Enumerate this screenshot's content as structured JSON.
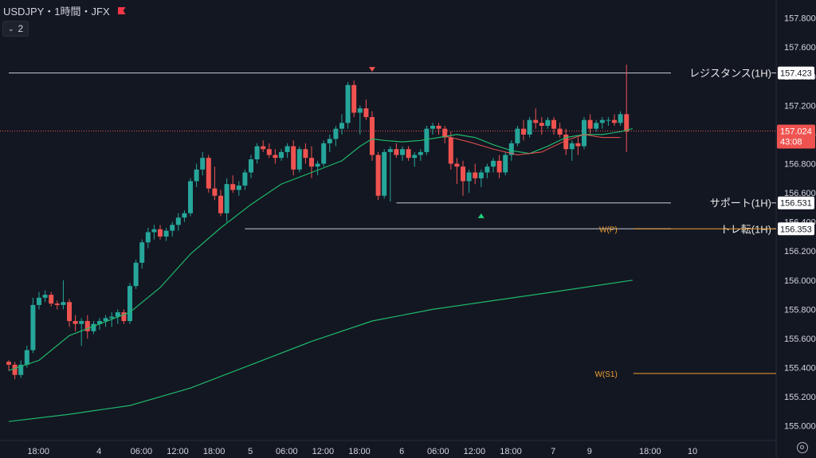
{
  "header": {
    "symbol": "USDJPY・1時間・JFX",
    "indicator_count": "2"
  },
  "colors": {
    "bg": "#131722",
    "up": "#26a69a",
    "down": "#ef5350",
    "ema_short": "#1fb86b",
    "ema_long": "#1fb86b",
    "ema_red": "#ef5350",
    "pivot": "#f0a030",
    "grid": "#1f2330",
    "text": "#d1d4dc",
    "line": "#c8ccd4",
    "current": "#ef5350"
  },
  "chart_data": {
    "type": "candlestick",
    "x_tick_labels": [
      "18:00",
      "4",
      "06:00",
      "12:00",
      "18:00",
      "5",
      "06:00",
      "12:00",
      "18:00",
      "6",
      "06:00",
      "12:00",
      "18:00",
      "7",
      "9",
      "18:00",
      "10"
    ],
    "x_tick_bars": [
      2,
      12,
      19,
      25,
      31,
      37,
      43,
      49,
      55,
      62,
      68,
      74,
      80,
      87,
      93,
      103,
      110
    ],
    "y_ticks": [
      "157.800",
      "157.600",
      "157.400",
      "157.200",
      "157.000",
      "156.800",
      "156.600",
      "156.400",
      "156.200",
      "156.000",
      "155.800",
      "155.600",
      "155.400",
      "155.200",
      "155.000"
    ],
    "ylim": [
      154.9,
      157.88
    ],
    "current_price": "157.024",
    "countdown": "43:08",
    "candles": [
      [
        155.44,
        155.45,
        155.38,
        155.42
      ],
      [
        155.42,
        155.44,
        155.32,
        155.35
      ],
      [
        155.35,
        155.45,
        155.33,
        155.42
      ],
      [
        155.42,
        155.55,
        155.4,
        155.52
      ],
      [
        155.52,
        155.88,
        155.5,
        155.83
      ],
      [
        155.83,
        155.92,
        155.8,
        155.88
      ],
      [
        155.88,
        155.93,
        155.85,
        155.9
      ],
      [
        155.9,
        155.92,
        155.82,
        155.84
      ],
      [
        155.84,
        155.86,
        155.8,
        155.83
      ],
      [
        155.83,
        156.0,
        155.8,
        155.85
      ],
      [
        155.85,
        155.87,
        155.68,
        155.72
      ],
      [
        155.72,
        155.76,
        155.65,
        155.7
      ],
      [
        155.7,
        155.74,
        155.55,
        155.72
      ],
      [
        155.72,
        155.76,
        155.6,
        155.65
      ],
      [
        155.65,
        155.72,
        155.63,
        155.7
      ],
      [
        155.7,
        155.74,
        155.66,
        155.72
      ],
      [
        155.72,
        155.76,
        155.68,
        155.74
      ],
      [
        155.74,
        155.78,
        155.68,
        155.75
      ],
      [
        155.75,
        155.8,
        155.7,
        155.78
      ],
      [
        155.78,
        155.8,
        155.7,
        155.72
      ],
      [
        155.72,
        155.98,
        155.7,
        155.96
      ],
      [
        155.96,
        156.14,
        155.94,
        156.12
      ],
      [
        156.12,
        156.28,
        156.08,
        156.26
      ],
      [
        156.26,
        156.36,
        156.22,
        156.33
      ],
      [
        156.33,
        156.38,
        156.28,
        156.35
      ],
      [
        156.35,
        156.38,
        156.28,
        156.3
      ],
      [
        156.3,
        156.36,
        156.27,
        156.34
      ],
      [
        156.34,
        156.4,
        156.3,
        156.38
      ],
      [
        156.38,
        156.46,
        156.34,
        156.43
      ],
      [
        156.43,
        156.48,
        156.4,
        156.46
      ],
      [
        156.46,
        156.7,
        156.44,
        156.68
      ],
      [
        156.68,
        156.8,
        156.64,
        156.76
      ],
      [
        156.76,
        156.88,
        156.72,
        156.84
      ],
      [
        156.84,
        156.86,
        156.6,
        156.63
      ],
      [
        156.63,
        156.78,
        156.55,
        156.58
      ],
      [
        156.58,
        156.62,
        156.44,
        156.46
      ],
      [
        156.46,
        156.7,
        156.4,
        156.66
      ],
      [
        156.66,
        156.72,
        156.6,
        156.62
      ],
      [
        156.62,
        156.68,
        156.58,
        156.65
      ],
      [
        156.65,
        156.76,
        156.62,
        156.74
      ],
      [
        156.74,
        156.86,
        156.7,
        156.83
      ],
      [
        156.83,
        156.94,
        156.8,
        156.92
      ],
      [
        156.92,
        156.96,
        156.88,
        156.9
      ],
      [
        156.9,
        156.94,
        156.84,
        156.86
      ],
      [
        156.86,
        156.9,
        156.8,
        156.84
      ],
      [
        156.84,
        156.9,
        156.82,
        156.88
      ],
      [
        156.88,
        156.94,
        156.84,
        156.92
      ],
      [
        156.92,
        156.96,
        156.72,
        156.76
      ],
      [
        156.76,
        156.92,
        156.74,
        156.9
      ],
      [
        156.9,
        156.94,
        156.8,
        156.84
      ],
      [
        156.84,
        156.92,
        156.7,
        156.78
      ],
      [
        156.78,
        156.82,
        156.72,
        156.8
      ],
      [
        156.8,
        156.96,
        156.78,
        156.94
      ],
      [
        156.94,
        157.0,
        156.88,
        156.97
      ],
      [
        156.97,
        157.06,
        156.92,
        157.04
      ],
      [
        157.04,
        157.14,
        157.0,
        157.08
      ],
      [
        157.08,
        157.36,
        157.04,
        157.34
      ],
      [
        157.34,
        157.37,
        157.12,
        157.15
      ],
      [
        157.15,
        157.2,
        157.0,
        157.18
      ],
      [
        157.18,
        157.24,
        157.1,
        157.12
      ],
      [
        157.12,
        157.16,
        156.82,
        156.86
      ],
      [
        156.86,
        156.88,
        156.55,
        156.58
      ],
      [
        156.58,
        156.9,
        156.56,
        156.88
      ],
      [
        156.88,
        156.92,
        156.54,
        156.9
      ],
      [
        156.9,
        156.94,
        156.84,
        156.86
      ],
      [
        156.86,
        156.92,
        156.82,
        156.9
      ],
      [
        156.9,
        156.92,
        156.82,
        156.84
      ],
      [
        156.84,
        156.88,
        156.78,
        156.86
      ],
      [
        156.86,
        156.9,
        156.82,
        156.88
      ],
      [
        156.88,
        157.06,
        156.86,
        157.04
      ],
      [
        157.04,
        157.08,
        157.0,
        157.06
      ],
      [
        157.06,
        157.08,
        157.0,
        157.04
      ],
      [
        157.04,
        157.06,
        156.94,
        156.98
      ],
      [
        156.98,
        157.02,
        156.76,
        156.8
      ],
      [
        156.8,
        156.84,
        156.66,
        156.78
      ],
      [
        156.78,
        156.82,
        156.58,
        156.68
      ],
      [
        156.68,
        156.76,
        156.6,
        156.74
      ],
      [
        156.74,
        156.8,
        156.66,
        156.7
      ],
      [
        156.7,
        156.76,
        156.64,
        156.74
      ],
      [
        156.74,
        156.8,
        156.7,
        156.78
      ],
      [
        156.78,
        156.84,
        156.74,
        156.82
      ],
      [
        156.82,
        156.86,
        156.7,
        156.74
      ],
      [
        156.74,
        156.88,
        156.72,
        156.86
      ],
      [
        156.86,
        156.96,
        156.82,
        156.94
      ],
      [
        156.94,
        157.06,
        156.92,
        157.04
      ],
      [
        157.04,
        157.1,
        156.96,
        157.0
      ],
      [
        157.0,
        157.12,
        156.98,
        157.1
      ],
      [
        157.1,
        157.18,
        157.04,
        157.08
      ],
      [
        157.08,
        157.12,
        157.0,
        157.06
      ],
      [
        157.06,
        157.12,
        157.04,
        157.1
      ],
      [
        157.1,
        157.12,
        157.0,
        157.04
      ],
      [
        157.04,
        157.08,
        156.98,
        157.0
      ],
      [
        157.0,
        157.04,
        156.86,
        156.9
      ],
      [
        156.9,
        156.96,
        156.82,
        156.94
      ],
      [
        156.94,
        156.98,
        156.86,
        156.92
      ],
      [
        156.92,
        157.12,
        156.9,
        157.1
      ],
      [
        157.1,
        157.14,
        157.0,
        157.04
      ],
      [
        157.04,
        157.1,
        157.02,
        157.08
      ],
      [
        157.08,
        157.12,
        157.04,
        157.1
      ],
      [
        157.1,
        157.12,
        157.06,
        157.1
      ],
      [
        157.1,
        157.14,
        157.06,
        157.08
      ],
      [
        157.08,
        157.16,
        157.06,
        157.14
      ],
      [
        157.14,
        157.48,
        156.88,
        157.02
      ]
    ],
    "ema_short_points": [
      [
        0,
        155.38
      ],
      [
        5,
        155.45
      ],
      [
        10,
        155.62
      ],
      [
        15,
        155.7
      ],
      [
        20,
        155.78
      ],
      [
        25,
        155.95
      ],
      [
        30,
        156.18
      ],
      [
        35,
        156.36
      ],
      [
        40,
        156.52
      ],
      [
        45,
        156.66
      ],
      [
        50,
        156.74
      ],
      [
        55,
        156.82
      ],
      [
        58,
        156.92
      ],
      [
        60,
        156.97
      ],
      [
        62,
        156.96
      ],
      [
        65,
        156.95
      ],
      [
        68,
        156.96
      ],
      [
        71,
        156.98
      ],
      [
        74,
        157.0
      ],
      [
        77,
        156.98
      ],
      [
        80,
        156.93
      ],
      [
        83,
        156.89
      ],
      [
        86,
        156.87
      ],
      [
        89,
        156.92
      ],
      [
        92,
        156.98
      ],
      [
        95,
        157.0
      ],
      [
        98,
        157.0
      ],
      [
        101,
        157.02
      ],
      [
        103,
        157.04
      ]
    ],
    "ema_red_points": [
      [
        72,
        156.99
      ],
      [
        76,
        156.95
      ],
      [
        80,
        156.9
      ],
      [
        84,
        156.86
      ],
      [
        88,
        156.88
      ],
      [
        92,
        156.96
      ],
      [
        95,
        157.0
      ],
      [
        98,
        156.98
      ],
      [
        101,
        156.98
      ]
    ],
    "ema_long_points": [
      [
        0,
        155.03
      ],
      [
        10,
        155.08
      ],
      [
        20,
        155.14
      ],
      [
        30,
        155.26
      ],
      [
        40,
        155.42
      ],
      [
        50,
        155.58
      ],
      [
        60,
        155.72
      ],
      [
        70,
        155.8
      ],
      [
        80,
        155.86
      ],
      [
        90,
        155.92
      ],
      [
        103,
        156.0
      ]
    ],
    "levels": [
      {
        "label": "レジスタンス(1H)",
        "price": 157.423,
        "price_text": "157.423",
        "from_bar": 0
      },
      {
        "label": "サポート(1H)",
        "price": 156.531,
        "price_text": "156.531",
        "from_bar": 64
      },
      {
        "label": "トレ転(1H)",
        "price": 156.353,
        "price_text": "156.353",
        "from_bar": 39
      }
    ],
    "pivots": [
      {
        "label": "W(P)",
        "price": 156.353
      },
      {
        "label": "W(S1)",
        "price": 155.36
      }
    ],
    "markers": [
      {
        "type": "down",
        "bar": 60,
        "price": 157.42
      },
      {
        "type": "up",
        "bar": 78,
        "price": 156.47
      }
    ]
  }
}
